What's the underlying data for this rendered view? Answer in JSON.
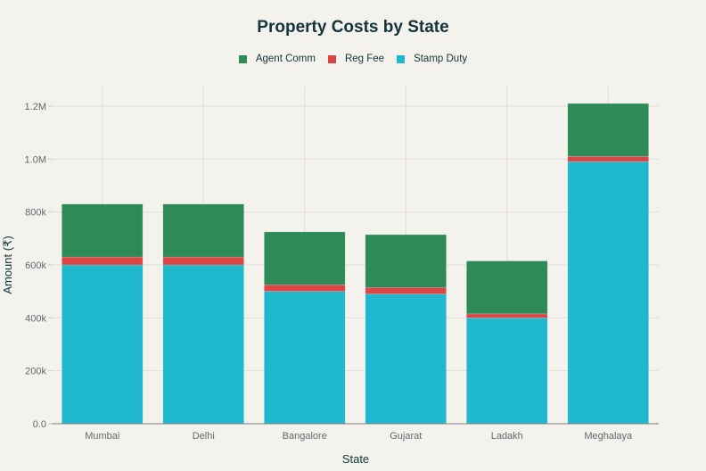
{
  "chart_data": {
    "type": "bar",
    "stacked": true,
    "title": "Property Costs by State",
    "xlabel": "State",
    "ylabel": "Amount (₹)",
    "categories": [
      "Mumbai",
      "Delhi",
      "Bangalore",
      "Gujarat",
      "Ladakh",
      "Meghalaya"
    ],
    "series": [
      {
        "name": "Stamp Duty",
        "color": "#1fb8cd",
        "values": [
          600000,
          600000,
          500000,
          490000,
          400000,
          990000
        ]
      },
      {
        "name": "Reg Fee",
        "color": "#db4545",
        "values": [
          30000,
          30000,
          25000,
          24500,
          15000,
          20000
        ]
      },
      {
        "name": "Agent Comm",
        "color": "#2e8b57",
        "values": [
          200000,
          200000,
          200000,
          200000,
          200000,
          200000
        ]
      }
    ],
    "legend_order": [
      "Agent Comm",
      "Reg Fee",
      "Stamp Duty"
    ],
    "legend_position": "top-center",
    "ylim": [
      0,
      1200000
    ],
    "yticks": [
      0,
      200000,
      400000,
      600000,
      800000,
      1000000,
      1200000
    ],
    "ytick_labels": [
      "0.0",
      "200k",
      "400k",
      "600k",
      "800k",
      "1.0M",
      "1.2M"
    ],
    "grid": true
  }
}
